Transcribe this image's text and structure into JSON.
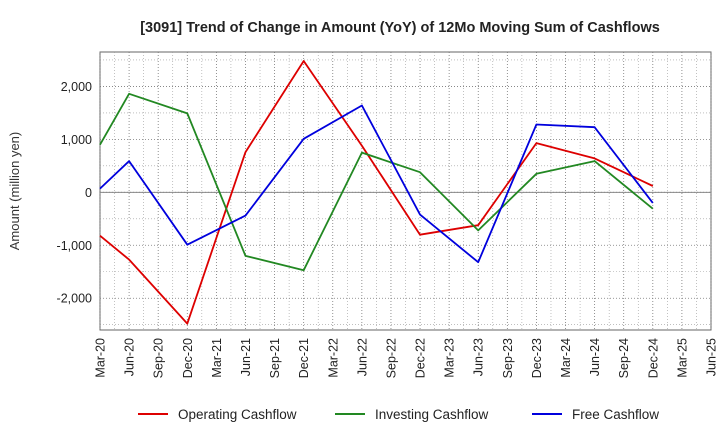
{
  "chart_data": {
    "type": "line",
    "title": "[3091]  Trend of Change in Amount (YoY) of 12Mo Moving Sum of Cashflows",
    "xlabel": "",
    "ylabel": "Amount (million yen)",
    "ylim": [
      -2600,
      2650
    ],
    "yticks": [
      -2000,
      -1000,
      0,
      1000,
      2000
    ],
    "ytick_labels": [
      "-2,000",
      "-1,000",
      "0",
      "1,000",
      "2,000"
    ],
    "categories": [
      "Mar-20",
      "Jun-20",
      "Sep-20",
      "Dec-20",
      "Mar-21",
      "Jun-21",
      "Sep-21",
      "Dec-21",
      "Mar-22",
      "Jun-22",
      "Sep-22",
      "Dec-22",
      "Mar-23",
      "Jun-23",
      "Sep-23",
      "Dec-23",
      "Mar-24",
      "Jun-24",
      "Sep-24",
      "Dec-24",
      "Mar-25",
      "Jun-25"
    ],
    "grid": true,
    "legend_position": "bottom",
    "series": [
      {
        "name": "Operating Cashflow",
        "color": "#dd0000",
        "points": [
          [
            0,
            -820
          ],
          [
            1,
            -1270
          ],
          [
            3,
            -2480
          ],
          [
            5,
            760
          ],
          [
            7,
            2480
          ],
          [
            9,
            880
          ],
          [
            11,
            -800
          ],
          [
            13,
            -620
          ],
          [
            15,
            930
          ],
          [
            17,
            640
          ],
          [
            19,
            120
          ]
        ]
      },
      {
        "name": "Investing Cashflow",
        "color": "#228822",
        "points": [
          [
            0,
            900
          ],
          [
            1,
            1860
          ],
          [
            3,
            1490
          ],
          [
            5,
            -1200
          ],
          [
            7,
            -1470
          ],
          [
            9,
            750
          ],
          [
            11,
            380
          ],
          [
            13,
            -720
          ],
          [
            15,
            350
          ],
          [
            17,
            590
          ],
          [
            19,
            -310
          ]
        ]
      },
      {
        "name": "Free Cashflow",
        "color": "#0000dd",
        "points": [
          [
            0,
            70
          ],
          [
            1,
            590
          ],
          [
            3,
            -990
          ],
          [
            5,
            -440
          ],
          [
            7,
            1010
          ],
          [
            9,
            1640
          ],
          [
            11,
            -420
          ],
          [
            13,
            -1320
          ],
          [
            15,
            1280
          ],
          [
            17,
            1230
          ],
          [
            19,
            -200
          ]
        ]
      }
    ]
  }
}
